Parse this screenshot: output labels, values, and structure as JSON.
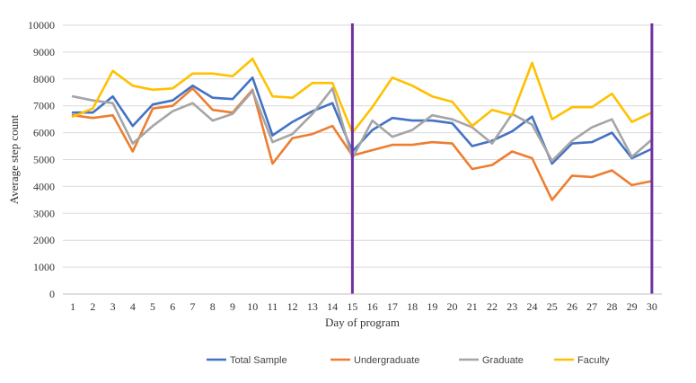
{
  "chart_data": {
    "type": "line",
    "title": "",
    "xlabel": "Day of program",
    "ylabel": "Average step count",
    "x": [
      1,
      2,
      3,
      4,
      5,
      6,
      7,
      8,
      9,
      10,
      11,
      12,
      13,
      14,
      15,
      16,
      17,
      18,
      19,
      20,
      21,
      22,
      23,
      24,
      25,
      26,
      27,
      28,
      29,
      30
    ],
    "ylim": [
      0,
      10000
    ],
    "yticks": [
      0,
      1000,
      2000,
      3000,
      4000,
      5000,
      6000,
      7000,
      8000,
      9000,
      10000
    ],
    "grid": "horizontal",
    "legend_position": "bottom",
    "vertical_markers": [
      15,
      30
    ],
    "vertical_marker_color": "#7030a0",
    "series": [
      {
        "name": "Total Sample",
        "color": "#4472c4",
        "values": [
          6750,
          6750,
          7350,
          6250,
          7050,
          7200,
          7750,
          7300,
          7250,
          8050,
          5900,
          6400,
          6800,
          7100,
          5300,
          6100,
          6550,
          6450,
          6450,
          6350,
          5500,
          5700,
          6050,
          6600,
          4850,
          5600,
          5650,
          6000,
          5050,
          5400
        ]
      },
      {
        "name": "Undergraduate",
        "color": "#ed7d31",
        "values": [
          6650,
          6550,
          6650,
          5300,
          6900,
          7000,
          7650,
          6850,
          6750,
          7600,
          4850,
          5800,
          5950,
          6250,
          5150,
          5350,
          5550,
          5550,
          5650,
          5600,
          4650,
          4800,
          5300,
          5050,
          3500,
          4400,
          4350,
          4600,
          4050,
          4200
        ]
      },
      {
        "name": "Graduate",
        "color": "#a5a5a5",
        "values": [
          7350,
          7200,
          7100,
          5600,
          6250,
          6800,
          7100,
          6450,
          6700,
          7550,
          5650,
          5950,
          6700,
          7650,
          5050,
          6450,
          5850,
          6100,
          6650,
          6500,
          6200,
          5600,
          6700,
          6300,
          4950,
          5700,
          6200,
          6500,
          5100,
          5750
        ]
      },
      {
        "name": "Faculty",
        "color": "#ffc000",
        "values": [
          6600,
          6900,
          8300,
          7750,
          7600,
          7650,
          8200,
          8200,
          8100,
          8750,
          7350,
          7300,
          7850,
          7850,
          6000,
          6950,
          8050,
          7750,
          7350,
          7150,
          6250,
          6850,
          6650,
          8600,
          6500,
          6950,
          6950,
          7450,
          6400,
          6750
        ]
      }
    ]
  }
}
